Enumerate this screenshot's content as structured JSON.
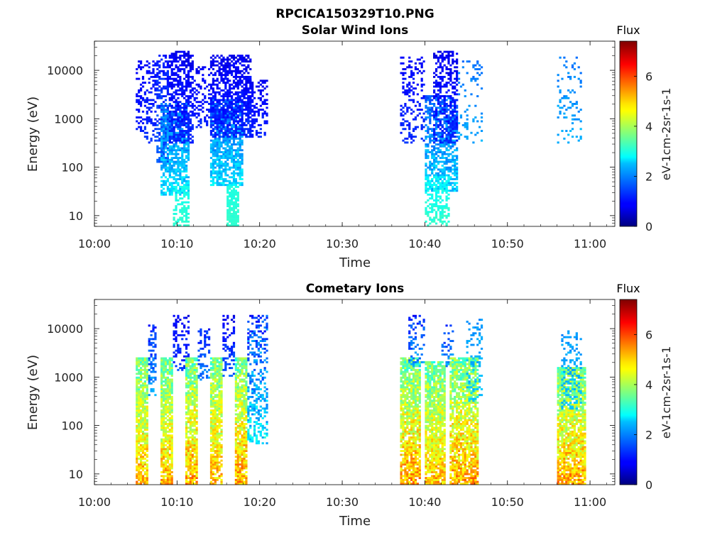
{
  "figure_title": "RPCICA150329T10.PNG",
  "chart_data": [
    {
      "type": "heatmap",
      "title": "Solar Wind Ions",
      "xlabel": "Time",
      "ylabel": "Energy (eV)",
      "yscale": "log",
      "ylim": [
        6,
        40000
      ],
      "xlim": [
        "10:00",
        "11:03"
      ],
      "x_ticks": [
        "10:00",
        "10:10",
        "10:20",
        "10:30",
        "10:40",
        "10:50",
        "11:00"
      ],
      "y_ticks": [
        "10",
        "100",
        "1000",
        "10000"
      ],
      "colorbar": {
        "title": "Flux",
        "label": "eV-1cm-2sr-1s-1",
        "ticks": [
          "0",
          "2",
          "4",
          "6"
        ],
        "range": [
          0,
          7.4
        ],
        "colormap": "jet"
      },
      "regions": [
        {
          "t_start": "10:05",
          "t_end": "10:06",
          "e_min": 500,
          "e_max": 15000,
          "flux_min": 0.8,
          "flux_max": 1.2,
          "density": 0.35
        },
        {
          "t_start": "10:06",
          "t_end": "10:07.5",
          "e_min": 300,
          "e_max": 15000,
          "flux_min": 0.8,
          "flux_max": 1.4,
          "density": 0.35
        },
        {
          "t_start": "10:07.5",
          "t_end": "10:09",
          "e_min": 120,
          "e_max": 20000,
          "flux_min": 0.8,
          "flux_max": 1.8,
          "density": 0.55
        },
        {
          "t_start": "10:08",
          "t_end": "10:11.5",
          "e_min": 25,
          "e_max": 2000,
          "flux_min": 1.4,
          "flux_max": 2.9,
          "density": 0.65
        },
        {
          "t_start": "10:09",
          "t_end": "10:12",
          "e_min": 300,
          "e_max": 25000,
          "flux_min": 0.6,
          "flux_max": 1.4,
          "density": 0.6
        },
        {
          "t_start": "10:09.5",
          "t_end": "10:11.5",
          "e_min": 6,
          "e_max": 40,
          "flux_min": 2.8,
          "flux_max": 3.2,
          "density": 0.5
        },
        {
          "t_start": "10:12",
          "t_end": "10:14",
          "e_min": 600,
          "e_max": 12000,
          "flux_min": 0.7,
          "flux_max": 1.3,
          "density": 0.3
        },
        {
          "t_start": "10:14",
          "t_end": "10:18",
          "e_min": 40,
          "e_max": 2500,
          "flux_min": 1.3,
          "flux_max": 2.9,
          "density": 0.7
        },
        {
          "t_start": "10:14",
          "t_end": "10:19",
          "e_min": 400,
          "e_max": 20000,
          "flux_min": 0.6,
          "flux_max": 1.4,
          "density": 0.6
        },
        {
          "t_start": "10:16",
          "t_end": "10:17.5",
          "e_min": 6,
          "e_max": 40,
          "flux_min": 2.9,
          "flux_max": 3.2,
          "density": 0.8
        },
        {
          "t_start": "10:18",
          "t_end": "10:21",
          "e_min": 400,
          "e_max": 6000,
          "flux_min": 0.7,
          "flux_max": 1.3,
          "density": 0.35
        },
        {
          "t_start": "10:37",
          "t_end": "10:40",
          "e_min": 300,
          "e_max": 20000,
          "flux_min": 0.7,
          "flux_max": 1.4,
          "density": 0.3
        },
        {
          "t_start": "10:40",
          "t_end": "10:44",
          "e_min": 30,
          "e_max": 3000,
          "flux_min": 1.2,
          "flux_max": 2.8,
          "density": 0.6
        },
        {
          "t_start": "10:40",
          "t_end": "10:43",
          "e_min": 6,
          "e_max": 60,
          "flux_min": 2.6,
          "flux_max": 3.3,
          "density": 0.55
        },
        {
          "t_start": "10:41",
          "t_end": "10:44",
          "e_min": 300,
          "e_max": 25000,
          "flux_min": 0.6,
          "flux_max": 1.4,
          "density": 0.45
        },
        {
          "t_start": "10:44",
          "t_end": "10:47",
          "e_min": 300,
          "e_max": 15000,
          "flux_min": 1.6,
          "flux_max": 2.3,
          "density": 0.15
        },
        {
          "t_start": "10:56",
          "t_end": "10:59",
          "e_min": 300,
          "e_max": 18000,
          "flux_min": 1.6,
          "flux_max": 2.4,
          "density": 0.15
        }
      ]
    },
    {
      "type": "heatmap",
      "title": "Cometary Ions",
      "xlabel": "Time",
      "ylabel": "Energy (eV)",
      "yscale": "log",
      "ylim": [
        6,
        40000
      ],
      "xlim": [
        "10:00",
        "11:03"
      ],
      "x_ticks": [
        "10:00",
        "10:10",
        "10:20",
        "10:30",
        "10:40",
        "10:50",
        "11:00"
      ],
      "y_ticks": [
        "10",
        "100",
        "1000",
        "10000"
      ],
      "colorbar": {
        "title": "Flux",
        "label": "eV-1cm-2sr-1s-1",
        "ticks": [
          "0",
          "2",
          "4",
          "6"
        ],
        "range": [
          0,
          7.4
        ],
        "colormap": "jet"
      },
      "regions": [
        {
          "t_start": "10:05",
          "t_end": "10:06.5",
          "e_min": 6,
          "e_max": 2500,
          "flux_min": 2.8,
          "flux_max": 5.8,
          "density": 0.85
        },
        {
          "t_start": "10:06.5",
          "t_end": "10:07.5",
          "e_min": 400,
          "e_max": 12000,
          "flux_min": 0.8,
          "flux_max": 2.4,
          "density": 0.4
        },
        {
          "t_start": "10:08",
          "t_end": "10:09.5",
          "e_min": 6,
          "e_max": 2500,
          "flux_min": 2.8,
          "flux_max": 5.8,
          "density": 0.85
        },
        {
          "t_start": "10:09.5",
          "t_end": "10:11.5",
          "e_min": 1200,
          "e_max": 18000,
          "flux_min": 0.6,
          "flux_max": 1.6,
          "density": 0.35
        },
        {
          "t_start": "10:11",
          "t_end": "10:12.5",
          "e_min": 6,
          "e_max": 2500,
          "flux_min": 2.8,
          "flux_max": 6.0,
          "density": 0.85
        },
        {
          "t_start": "10:12.5",
          "t_end": "10:14",
          "e_min": 800,
          "e_max": 10000,
          "flux_min": 0.8,
          "flux_max": 2.2,
          "density": 0.35
        },
        {
          "t_start": "10:14",
          "t_end": "10:15.5",
          "e_min": 6,
          "e_max": 2500,
          "flux_min": 2.8,
          "flux_max": 5.8,
          "density": 0.85
        },
        {
          "t_start": "10:15.5",
          "t_end": "10:17",
          "e_min": 1000,
          "e_max": 18000,
          "flux_min": 0.6,
          "flux_max": 1.8,
          "density": 0.35
        },
        {
          "t_start": "10:17",
          "t_end": "10:18.5",
          "e_min": 6,
          "e_max": 2500,
          "flux_min": 2.8,
          "flux_max": 6.0,
          "density": 0.85
        },
        {
          "t_start": "10:18.5",
          "t_end": "10:21",
          "e_min": 40,
          "e_max": 18000,
          "flux_min": 0.8,
          "flux_max": 3.2,
          "density": 0.4
        },
        {
          "t_start": "10:37",
          "t_end": "10:39.5",
          "e_min": 6,
          "e_max": 2500,
          "flux_min": 2.8,
          "flux_max": 6.0,
          "density": 0.85
        },
        {
          "t_start": "10:38",
          "t_end": "10:40",
          "e_min": 1500,
          "e_max": 18000,
          "flux_min": 0.8,
          "flux_max": 2.4,
          "density": 0.25
        },
        {
          "t_start": "10:40",
          "t_end": "10:42.5",
          "e_min": 6,
          "e_max": 2000,
          "flux_min": 2.8,
          "flux_max": 5.8,
          "density": 0.85
        },
        {
          "t_start": "10:42",
          "t_end": "10:43.5",
          "e_min": 1500,
          "e_max": 12000,
          "flux_min": 0.8,
          "flux_max": 2.4,
          "density": 0.25
        },
        {
          "t_start": "10:43",
          "t_end": "10:46.5",
          "e_min": 6,
          "e_max": 2500,
          "flux_min": 2.8,
          "flux_max": 6.0,
          "density": 0.8
        },
        {
          "t_start": "10:45",
          "t_end": "10:47",
          "e_min": 300,
          "e_max": 15000,
          "flux_min": 1.8,
          "flux_max": 2.6,
          "density": 0.25
        },
        {
          "t_start": "10:56",
          "t_end": "10:59.5",
          "e_min": 6,
          "e_max": 1500,
          "flux_min": 2.8,
          "flux_max": 6.0,
          "density": 0.85
        },
        {
          "t_start": "10:56.5",
          "t_end": "10:59",
          "e_min": 200,
          "e_max": 9000,
          "flux_min": 1.8,
          "flux_max": 2.6,
          "density": 0.3
        }
      ]
    }
  ]
}
